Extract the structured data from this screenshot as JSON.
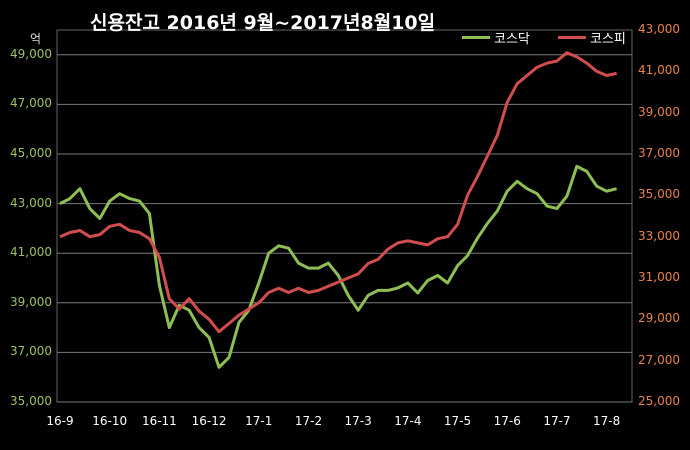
{
  "title": "신용잔고  2016년 9월~2017년8월10일",
  "unit_label": "억",
  "colors": {
    "kosdaq": "#8fbe54",
    "kospi": "#d24d4d",
    "left_axis": "#9bc063",
    "right_axis": "#e8824a",
    "grid": "#7a7a7a"
  },
  "chart_data": {
    "type": "line",
    "title": "신용잔고  2016년 9월~2017년8월10일",
    "ylabel_left": "억",
    "x_months": [
      "16-9",
      "16-10",
      "16-11",
      "16-12",
      "17-1",
      "17-2",
      "17-3",
      "17-4",
      "17-5",
      "17-6",
      "17-7",
      "17-8"
    ],
    "left_axis": {
      "series": "코스닥",
      "ylim": [
        35000,
        50000
      ],
      "ticks": [
        "35,000",
        "37,000",
        "39,000",
        "41,000",
        "43,000",
        "45,000",
        "47,000",
        "49,000"
      ]
    },
    "right_axis": {
      "series": "코스피",
      "ylim": [
        25000,
        43000
      ],
      "ticks": [
        "25,000",
        "27,000",
        "29,000",
        "31,000",
        "33,000",
        "35,000",
        "37,000",
        "39,000",
        "41,000",
        "43,000"
      ]
    },
    "legend_position": "top-right",
    "series": [
      {
        "name": "코스닥",
        "axis": "left",
        "x": [
          0,
          0.2,
          0.4,
          0.6,
          0.8,
          1.0,
          1.2,
          1.4,
          1.6,
          1.8,
          2.0,
          2.2,
          2.4,
          2.6,
          2.8,
          3.0,
          3.2,
          3.4,
          3.6,
          3.8,
          4.0,
          4.2,
          4.4,
          4.6,
          4.8,
          5.0,
          5.2,
          5.4,
          5.6,
          5.8,
          6.0,
          6.2,
          6.4,
          6.6,
          6.8,
          7.0,
          7.2,
          7.4,
          7.6,
          7.8,
          8.0,
          8.2,
          8.4,
          8.6,
          8.8,
          9.0,
          9.2,
          9.4,
          9.6,
          9.8,
          10.0,
          10.2,
          10.4,
          10.6,
          10.8,
          11.0,
          11.2
        ],
        "values": [
          43000,
          43200,
          43600,
          42800,
          42400,
          43100,
          43400,
          43200,
          43100,
          42600,
          39700,
          38000,
          38900,
          38700,
          38000,
          37600,
          36400,
          36800,
          38200,
          38700,
          39800,
          41000,
          41300,
          41200,
          40600,
          40400,
          40400,
          40600,
          40100,
          39300,
          38700,
          39300,
          39500,
          39500,
          39600,
          39800,
          39400,
          39900,
          40100,
          39800,
          40500,
          40900,
          41600,
          42200,
          42700,
          43500,
          43900,
          43600,
          43400,
          42900,
          42800,
          43300,
          44500,
          44300,
          43700,
          43500,
          43600
        ]
      },
      {
        "name": "코스피",
        "axis": "right",
        "x": [
          0,
          0.2,
          0.4,
          0.6,
          0.8,
          1.0,
          1.2,
          1.4,
          1.6,
          1.8,
          2.0,
          2.2,
          2.4,
          2.6,
          2.8,
          3.0,
          3.2,
          3.4,
          3.6,
          3.8,
          4.0,
          4.2,
          4.4,
          4.6,
          4.8,
          5.0,
          5.2,
          5.4,
          5.6,
          5.8,
          6.0,
          6.2,
          6.4,
          6.6,
          6.8,
          7.0,
          7.2,
          7.4,
          7.6,
          7.8,
          8.0,
          8.2,
          8.4,
          8.6,
          8.8,
          9.0,
          9.2,
          9.4,
          9.6,
          9.8,
          10.0,
          10.2,
          10.4,
          10.6,
          10.8,
          11.0,
          11.2
        ],
        "values": [
          33000,
          33200,
          33300,
          33000,
          33100,
          33500,
          33600,
          33300,
          33200,
          32900,
          32000,
          30000,
          29500,
          30000,
          29400,
          29000,
          28400,
          28800,
          29200,
          29500,
          29800,
          30300,
          30500,
          30300,
          30500,
          30300,
          30400,
          30600,
          30800,
          31000,
          31200,
          31700,
          31900,
          32400,
          32700,
          32800,
          32700,
          32600,
          32900,
          33000,
          33600,
          35000,
          35900,
          36900,
          37900,
          39500,
          40400,
          40800,
          41200,
          41400,
          41500,
          41900,
          41700,
          41400,
          41000,
          40800,
          40900
        ]
      }
    ]
  }
}
